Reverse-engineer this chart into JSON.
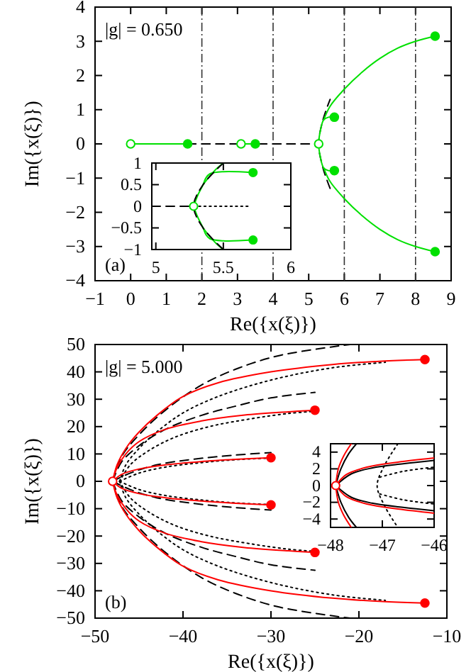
{
  "chart_data": [
    {
      "type": "line",
      "xlabel": "Re({x(ξ)})",
      "ylabel": "Im({x(ξ)})",
      "xlim": [
        -1,
        9
      ],
      "ylim": [
        -4,
        4
      ],
      "xticks": [
        -1,
        0,
        1,
        2,
        3,
        4,
        5,
        6,
        7,
        8,
        9
      ],
      "yticks": [
        -4,
        -3,
        -2,
        -1,
        0,
        1,
        2,
        3,
        4
      ],
      "annotations": [
        "|g| = 0.650",
        "(a)"
      ],
      "ref_lines": [
        {
          "axis": "x",
          "value": 2
        },
        {
          "axis": "x",
          "value": 4
        },
        {
          "axis": "x",
          "value": 6
        },
        {
          "axis": "x",
          "value": 8
        }
      ],
      "series": [
        {
          "color": "#000000",
          "line_style": "dashed",
          "x": [
            0,
            5.28
          ],
          "values": [
            0,
            0
          ]
        },
        {
          "color": "#000000",
          "line_style": "dashed",
          "x": [
            5.6,
            5.4,
            5.28,
            5.4,
            5.6
          ],
          "values": [
            -1.3,
            -0.7,
            0,
            0.7,
            1.3
          ]
        },
        {
          "color": "#00e000",
          "x": [
            0,
            1.6
          ],
          "values": [
            0,
            0
          ]
        },
        {
          "color": "#00e000",
          "x": [
            3.1,
            3.5
          ],
          "values": [
            0,
            0
          ]
        },
        {
          "color": "#00e000",
          "x": [
            5.72,
            5.55,
            5.42,
            5.33,
            5.28,
            5.33,
            5.42,
            5.55,
            5.72
          ],
          "values": [
            0.78,
            0.78,
            0.7,
            0.4,
            0,
            -0.4,
            -0.7,
            -0.78,
            -0.78
          ]
        },
        {
          "color": "#00e000",
          "x": [
            5.42,
            5.6,
            6,
            6.5,
            7,
            7.5,
            8,
            8.55
          ],
          "values": [
            0.7,
            1.1,
            1.6,
            2.1,
            2.5,
            2.8,
            3.0,
            3.15
          ]
        },
        {
          "color": "#00e000",
          "x": [
            5.42,
            5.6,
            6,
            6.5,
            7,
            7.5,
            8,
            8.55
          ],
          "values": [
            -0.7,
            -1.1,
            -1.6,
            -2.1,
            -2.5,
            -2.8,
            -3.0,
            -3.15
          ]
        },
        {
          "type": "scatter",
          "marker": "circle",
          "color": "#00e000",
          "x": [
            1.6,
            3.5,
            5.72,
            5.72,
            8.55,
            8.55
          ],
          "values": [
            0,
            0,
            0.78,
            -0.78,
            3.15,
            -3.15
          ]
        },
        {
          "type": "scatter",
          "marker": "circle",
          "color": "#ffffff",
          "x": [
            0,
            3.1,
            5.28
          ],
          "values": [
            0,
            0,
            0
          ]
        }
      ]
    },
    {
      "type": "line",
      "xlim": [
        4.97,
        6.0
      ],
      "ylim": [
        -1,
        1
      ],
      "xticks": [
        5,
        5.5,
        6
      ],
      "yticks": [
        -1,
        -0.5,
        0,
        0.5,
        1
      ],
      "series": [
        {
          "color": "#00e000",
          "x": [
            5.28,
            5.31,
            5.35,
            5.37,
            5.4,
            5.5,
            5.72
          ],
          "values": [
            0,
            0.25,
            0.5,
            0.65,
            0.75,
            0.8,
            0.78
          ]
        },
        {
          "color": "#00e000",
          "x": [
            5.35,
            5.4,
            5.45,
            5.5
          ],
          "values": [
            0.5,
            0.7,
            0.87,
            1
          ]
        },
        {
          "color": "#00e000",
          "x": [
            5.28,
            5.31,
            5.35,
            5.37,
            5.4,
            5.5,
            5.72
          ],
          "values": [
            0,
            -0.25,
            -0.5,
            -0.65,
            -0.75,
            -0.8,
            -0.78
          ]
        },
        {
          "color": "#00e000",
          "x": [
            5.35,
            5.4,
            5.45,
            5.5
          ],
          "values": [
            -0.5,
            -0.7,
            -0.87,
            -1
          ]
        },
        {
          "color": "#000000",
          "line_style": "dashed",
          "x": [
            5.5,
            5.35,
            5.28,
            5.35,
            5.5
          ],
          "values": [
            -1,
            -0.5,
            0,
            0.5,
            1
          ]
        },
        {
          "color": "#000000",
          "line_style": "dashed",
          "x": [
            4.97,
            5.28
          ],
          "values": [
            0,
            0
          ]
        },
        {
          "color": "#000000",
          "line_style": "dotted",
          "x": [
            5.28,
            5.7
          ],
          "values": [
            0,
            0
          ]
        },
        {
          "type": "scatter",
          "marker": "circle",
          "color": "#00e000",
          "x": [
            5.72,
            5.72
          ],
          "values": [
            0.78,
            -0.78
          ]
        },
        {
          "type": "scatter",
          "marker": "circle",
          "color": "#ffffff",
          "x": [
            5.28
          ],
          "values": [
            0
          ]
        }
      ]
    },
    {
      "type": "line",
      "xlabel": "Re({x(ξ)})",
      "ylabel": "Im({x(ξ)})",
      "xlim": [
        -50,
        -10
      ],
      "ylim": [
        -50,
        50
      ],
      "xticks": [
        -50,
        -40,
        -30,
        -20,
        -10
      ],
      "yticks": [
        -50,
        -40,
        -30,
        -20,
        -10,
        0,
        10,
        20,
        30,
        40,
        50
      ],
      "annotations": [
        "|g| = 5.000",
        "(b)"
      ],
      "series": [
        {
          "color": "#000000",
          "line_style": "dashed",
          "x": [
            -48,
            -47,
            -45,
            -42,
            -38,
            -34,
            -29,
            -21
          ],
          "values": [
            0,
            9,
            17,
            26,
            35,
            41,
            46,
            50
          ]
        },
        {
          "color": "#000000",
          "line_style": "dashed",
          "x": [
            -48,
            -47,
            -45,
            -42,
            -38,
            -34,
            -30,
            -25
          ],
          "values": [
            0,
            7,
            13,
            19,
            24,
            27.5,
            30.5,
            32.5
          ]
        },
        {
          "color": "#000000",
          "line_style": "dashed",
          "x": [
            -48,
            -46,
            -43,
            -39,
            -34,
            -30
          ],
          "values": [
            0,
            3,
            6,
            8,
            9.6,
            10.5
          ]
        },
        {
          "color": "#000000",
          "line_style": "dashed",
          "x": [
            -48,
            -47,
            -45,
            -42,
            -38,
            -34,
            -29,
            -21
          ],
          "values": [
            0,
            -9,
            -17,
            -26,
            -35,
            -41,
            -46,
            -50
          ]
        },
        {
          "color": "#000000",
          "line_style": "dashed",
          "x": [
            -48,
            -47,
            -45,
            -42,
            -38,
            -34,
            -30,
            -25
          ],
          "values": [
            0,
            -7,
            -13,
            -19,
            -24,
            -27.5,
            -30.5,
            -32.5
          ]
        },
        {
          "color": "#000000",
          "line_style": "dashed",
          "x": [
            -48,
            -46,
            -43,
            -39,
            -34,
            -30
          ],
          "values": [
            0,
            -3,
            -6,
            -8,
            -9.6,
            -10.5
          ]
        },
        {
          "color": "#000000",
          "line_style": "dotted",
          "x": [
            -47.2,
            -46.5,
            -45,
            -43,
            -40,
            -36,
            -30,
            -23,
            -17
          ],
          "values": [
            0,
            6,
            12,
            18,
            25,
            31,
            37,
            41.5,
            43.5
          ]
        },
        {
          "color": "#000000",
          "line_style": "dotted",
          "x": [
            -47.2,
            -46,
            -44,
            -41,
            -37,
            -32,
            -28,
            -25
          ],
          "values": [
            0,
            6,
            11,
            16,
            20,
            23,
            24.8,
            25.6
          ]
        },
        {
          "color": "#000000",
          "line_style": "dotted",
          "x": [
            -47.2,
            -45,
            -42,
            -38,
            -34,
            -30
          ],
          "values": [
            0,
            3,
            5.2,
            6.8,
            7.9,
            8.5
          ]
        },
        {
          "color": "#000000",
          "line_style": "dotted",
          "x": [
            -47.2,
            -46.5,
            -45,
            -43,
            -40,
            -36,
            -30,
            -23,
            -17
          ],
          "values": [
            0,
            -6,
            -12,
            -18,
            -25,
            -31,
            -37,
            -41.5,
            -43.5
          ]
        },
        {
          "color": "#000000",
          "line_style": "dotted",
          "x": [
            -47.2,
            -46,
            -44,
            -41,
            -37,
            -32,
            -28,
            -25
          ],
          "values": [
            0,
            -6,
            -11,
            -16,
            -20,
            -23,
            -24.8,
            -25.6
          ]
        },
        {
          "color": "#000000",
          "line_style": "dotted",
          "x": [
            -47.2,
            -45,
            -42,
            -38,
            -34,
            -30
          ],
          "values": [
            0,
            -3,
            -5.2,
            -6.8,
            -7.9,
            -8.5
          ]
        },
        {
          "color": "#ff0000",
          "x": [
            -48,
            -47.5,
            -46.5,
            -45,
            -43,
            -40,
            -36,
            -30,
            -23,
            -17,
            -12.5
          ],
          "values": [
            0,
            6,
            12,
            18,
            24,
            31,
            36,
            40,
            42.7,
            44,
            44.5
          ]
        },
        {
          "color": "#ff0000",
          "x": [
            -48,
            -47.5,
            -46.5,
            -45,
            -42,
            -38,
            -33,
            -28,
            -25
          ],
          "values": [
            0,
            5,
            10,
            14.5,
            19,
            22,
            24.2,
            25.4,
            26
          ]
        },
        {
          "color": "#ff0000",
          "x": [
            -48,
            -47,
            -45,
            -42,
            -38,
            -34,
            -30
          ],
          "values": [
            0,
            2.5,
            4.5,
            6,
            7.2,
            8,
            8.6
          ]
        },
        {
          "color": "#ff0000",
          "x": [
            -48,
            -47.5,
            -46.5,
            -45,
            -43,
            -40,
            -36,
            -30,
            -23,
            -17,
            -12.5
          ],
          "values": [
            0,
            -6,
            -12,
            -18,
            -24,
            -31,
            -36,
            -40,
            -42.7,
            -44,
            -44.5
          ]
        },
        {
          "color": "#ff0000",
          "x": [
            -48,
            -47.5,
            -46.5,
            -45,
            -42,
            -38,
            -33,
            -28,
            -25
          ],
          "values": [
            0,
            -5,
            -10,
            -14.5,
            -19,
            -22,
            -24.2,
            -25.4,
            -26
          ]
        },
        {
          "color": "#ff0000",
          "x": [
            -48,
            -47,
            -45,
            -42,
            -38,
            -34,
            -30
          ],
          "values": [
            0,
            -2.5,
            -4.5,
            -6,
            -7.2,
            -8,
            -8.6
          ]
        },
        {
          "type": "scatter",
          "marker": "circle",
          "color": "#ff0000",
          "x": [
            -12.5,
            -25,
            -30,
            -30,
            -25,
            -12.5
          ],
          "values": [
            44.5,
            26,
            8.6,
            -8.6,
            -26,
            -44.5
          ]
        },
        {
          "type": "scatter",
          "marker": "circle",
          "color": "#ffffff",
          "x": [
            -48
          ],
          "values": [
            0
          ]
        }
      ]
    },
    {
      "type": "line",
      "xlim": [
        -48,
        -46
      ],
      "ylim": [
        -5,
        5
      ],
      "xticks": [
        -48,
        -47,
        -46
      ],
      "yticks": [
        -4,
        -2,
        0,
        2,
        4
      ],
      "series": [
        {
          "color": "#000000",
          "x": [
            -47.9,
            -47.8,
            -47.65,
            -47.5
          ],
          "values": [
            0,
            2,
            3.8,
            5
          ]
        },
        {
          "color": "#000000",
          "x": [
            -47.9,
            -47.6,
            -47.2,
            -46.6,
            -46
          ],
          "values": [
            0,
            1.4,
            2.1,
            2.6,
            3.0
          ]
        },
        {
          "color": "#000000",
          "x": [
            -47.9,
            -47.8,
            -47.65,
            -47.5
          ],
          "values": [
            0,
            -2,
            -3.8,
            -5
          ]
        },
        {
          "color": "#000000",
          "x": [
            -47.9,
            -47.6,
            -47.2,
            -46.6,
            -46
          ],
          "values": [
            0,
            -1.4,
            -2.1,
            -2.6,
            -3.0
          ]
        },
        {
          "color": "#000000",
          "line_style": "dotted",
          "x": [
            -46.7,
            -46.95,
            -47.1,
            -46.95,
            -46.7
          ],
          "values": [
            5,
            2.5,
            0,
            -2.5,
            -5
          ]
        },
        {
          "color": "#000000",
          "line_style": "dotted",
          "x": [
            -47.05,
            -46.6,
            -46
          ],
          "values": [
            1,
            1.7,
            2.2
          ]
        },
        {
          "color": "#000000",
          "line_style": "dotted",
          "x": [
            -47.05,
            -46.6,
            -46
          ],
          "values": [
            -1,
            -1.7,
            -2.2
          ]
        },
        {
          "color": "#ff0000",
          "x": [
            -47.9,
            -47.85,
            -47.75,
            -47.6
          ],
          "values": [
            0,
            2,
            3.5,
            5
          ]
        },
        {
          "color": "#ff0000",
          "x": [
            -47.9,
            -47.7,
            -47.3,
            -46.7,
            -46
          ],
          "values": [
            0,
            1.3,
            2.2,
            2.8,
            3.3
          ]
        },
        {
          "color": "#ff0000",
          "x": [
            -47.9,
            -47.85,
            -47.75,
            -47.6
          ],
          "values": [
            0,
            -2,
            -3.5,
            -5
          ]
        },
        {
          "color": "#ff0000",
          "x": [
            -47.9,
            -47.7,
            -47.3,
            -46.7,
            -46
          ],
          "values": [
            0,
            -1.3,
            -2.2,
            -2.8,
            -3.3
          ]
        },
        {
          "type": "scatter",
          "marker": "circle",
          "color": "#ffffff",
          "x": [
            -47.9
          ],
          "values": [
            0
          ]
        }
      ]
    }
  ]
}
